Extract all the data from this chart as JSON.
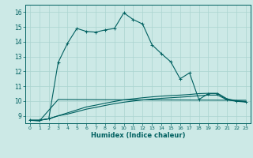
{
  "title": "",
  "xlabel": "Humidex (Indice chaleur)",
  "ylabel": "",
  "xlim": [
    -0.5,
    23.5
  ],
  "ylim": [
    8.5,
    16.5
  ],
  "yticks": [
    9,
    10,
    11,
    12,
    13,
    14,
    15,
    16
  ],
  "xticks": [
    0,
    1,
    2,
    3,
    4,
    5,
    6,
    7,
    8,
    9,
    10,
    11,
    12,
    13,
    14,
    15,
    16,
    17,
    18,
    19,
    20,
    21,
    22,
    23
  ],
  "bg_color": "#cce9e6",
  "line_color": "#006060",
  "grid_color": "#aad4d0",
  "line1_x": [
    0,
    1,
    2,
    3,
    4,
    5,
    6,
    7,
    8,
    9,
    10,
    11,
    12,
    13,
    14,
    15,
    16,
    17,
    18,
    19,
    20,
    21,
    22,
    23
  ],
  "line1_y": [
    8.7,
    8.7,
    8.8,
    12.6,
    13.9,
    14.9,
    14.7,
    14.65,
    14.8,
    14.9,
    15.95,
    15.5,
    15.2,
    13.8,
    13.2,
    12.65,
    11.5,
    11.9,
    10.1,
    10.5,
    10.5,
    10.1,
    10.0,
    9.95
  ],
  "line2_x": [
    0,
    1,
    3,
    23
  ],
  "line2_y": [
    8.7,
    8.65,
    10.1,
    10.05
  ],
  "line3_x": [
    0,
    1,
    2,
    3,
    4,
    5,
    6,
    7,
    8,
    9,
    10,
    11,
    12,
    13,
    14,
    15,
    16,
    17,
    18,
    19,
    20,
    21,
    22,
    23
  ],
  "line3_y": [
    8.7,
    8.7,
    8.8,
    9.0,
    9.2,
    9.4,
    9.6,
    9.72,
    9.85,
    9.97,
    10.08,
    10.15,
    10.22,
    10.28,
    10.33,
    10.37,
    10.4,
    10.44,
    10.5,
    10.52,
    10.52,
    10.15,
    10.02,
    9.97
  ],
  "line4_x": [
    0,
    1,
    2,
    3,
    4,
    5,
    6,
    7,
    8,
    9,
    10,
    11,
    12,
    13,
    14,
    15,
    16,
    17,
    18,
    19,
    20,
    21,
    22,
    23
  ],
  "line4_y": [
    8.7,
    8.7,
    8.8,
    9.0,
    9.12,
    9.28,
    9.45,
    9.57,
    9.7,
    9.82,
    9.92,
    10.0,
    10.07,
    10.13,
    10.18,
    10.22,
    10.26,
    10.3,
    10.36,
    10.4,
    10.4,
    10.08,
    9.98,
    9.93
  ]
}
